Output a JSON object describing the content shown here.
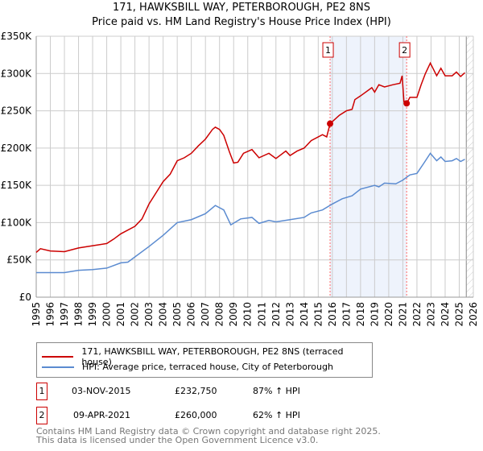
{
  "title": "171, HAWKSBILL WAY, PETERBOROUGH, PE2 8NS",
  "subtitle": "Price paid vs. HM Land Registry's House Price Index (HPI)",
  "colors": {
    "property": "#cc0000",
    "hpi": "#5b8bd0",
    "shade": "#eef3fc"
  },
  "chart_data": {
    "type": "line",
    "ylim": [
      0,
      350000
    ],
    "xlim": [
      1995,
      2026
    ],
    "yticks": [
      {
        "v": 0,
        "label": "£0"
      },
      {
        "v": 50000,
        "label": "£50K"
      },
      {
        "v": 100000,
        "label": "£100K"
      },
      {
        "v": 150000,
        "label": "£150K"
      },
      {
        "v": 200000,
        "label": "£200K"
      },
      {
        "v": 250000,
        "label": "£250K"
      },
      {
        "v": 300000,
        "label": "£300K"
      },
      {
        "v": 350000,
        "label": "£350K"
      }
    ],
    "xticks": [
      "1995",
      "1996",
      "1997",
      "1998",
      "1999",
      "2000",
      "2001",
      "2002",
      "2003",
      "2004",
      "2005",
      "2006",
      "2007",
      "2008",
      "2009",
      "2010",
      "2011",
      "2012",
      "2013",
      "2014",
      "2015",
      "2016",
      "2017",
      "2018",
      "2019",
      "2020",
      "2021",
      "2022",
      "2023",
      "2024",
      "2025",
      "2026"
    ],
    "forecast_from": 2025.5,
    "series": [
      {
        "name": "171, HAWKSBILL WAY, PETERBOROUGH, PE2 8NS (terraced house)",
        "points": [
          [
            1995,
            60
          ],
          [
            1995.3,
            65
          ],
          [
            1996,
            62
          ],
          [
            1997,
            61
          ],
          [
            1998,
            66
          ],
          [
            1999,
            69
          ],
          [
            2000,
            72
          ],
          [
            2000.5,
            78
          ],
          [
            2001,
            85
          ],
          [
            2002,
            95
          ],
          [
            2002.5,
            105
          ],
          [
            2003,
            125
          ],
          [
            2003.5,
            140
          ],
          [
            2004,
            155
          ],
          [
            2004.5,
            165
          ],
          [
            2005,
            183
          ],
          [
            2005.5,
            187
          ],
          [
            2006,
            193
          ],
          [
            2006.5,
            203
          ],
          [
            2007,
            212
          ],
          [
            2007.5,
            225
          ],
          [
            2007.7,
            228
          ],
          [
            2008,
            225
          ],
          [
            2008.3,
            217
          ],
          [
            2008.7,
            195
          ],
          [
            2009,
            180
          ],
          [
            2009.3,
            181
          ],
          [
            2009.7,
            193
          ],
          [
            2010.3,
            198
          ],
          [
            2010.8,
            187
          ],
          [
            2011.5,
            193
          ],
          [
            2012,
            186
          ],
          [
            2012.7,
            196
          ],
          [
            2013,
            190
          ],
          [
            2013.5,
            196
          ],
          [
            2014,
            200
          ],
          [
            2014.5,
            210
          ],
          [
            2015.3,
            218
          ],
          [
            2015.6,
            215
          ],
          [
            2015.84,
            232.75
          ],
          [
            2016.5,
            244
          ],
          [
            2017,
            250
          ],
          [
            2017.4,
            252
          ],
          [
            2017.6,
            265
          ],
          [
            2018,
            270
          ],
          [
            2018.8,
            281
          ],
          [
            2019,
            275
          ],
          [
            2019.3,
            285
          ],
          [
            2019.7,
            282
          ],
          [
            2020.3,
            285
          ],
          [
            2020.8,
            287
          ],
          [
            2020.95,
            297
          ],
          [
            2021.08,
            262
          ],
          [
            2021.27,
            260
          ],
          [
            2021.5,
            268
          ],
          [
            2022,
            268
          ],
          [
            2022.3,
            285
          ],
          [
            2022.6,
            300
          ],
          [
            2022.95,
            314
          ],
          [
            2023.4,
            297
          ],
          [
            2023.7,
            307
          ],
          [
            2024,
            297
          ],
          [
            2024.5,
            297
          ],
          [
            2024.8,
            302
          ],
          [
            2025.1,
            296
          ],
          [
            2025.4,
            301
          ]
        ]
      },
      {
        "name": "HPI: Average price, terraced house, City of Peterborough",
        "points": [
          [
            1995,
            33
          ],
          [
            1997,
            33
          ],
          [
            1998,
            36
          ],
          [
            1999,
            37
          ],
          [
            2000,
            39
          ],
          [
            2001,
            46
          ],
          [
            2001.5,
            47
          ],
          [
            2002,
            54
          ],
          [
            2003,
            68
          ],
          [
            2004,
            83
          ],
          [
            2005,
            100
          ],
          [
            2006,
            104
          ],
          [
            2007,
            112
          ],
          [
            2007.7,
            123
          ],
          [
            2008.3,
            117
          ],
          [
            2008.8,
            97
          ],
          [
            2009.5,
            105
          ],
          [
            2010.3,
            107
          ],
          [
            2010.8,
            99
          ],
          [
            2011.5,
            103
          ],
          [
            2012,
            101
          ],
          [
            2013,
            104
          ],
          [
            2014,
            107
          ],
          [
            2014.5,
            113
          ],
          [
            2015.3,
            117
          ],
          [
            2016,
            125
          ],
          [
            2016.7,
            132
          ],
          [
            2017.4,
            136
          ],
          [
            2018,
            145
          ],
          [
            2019,
            150
          ],
          [
            2019.3,
            148
          ],
          [
            2019.7,
            153
          ],
          [
            2020.5,
            152
          ],
          [
            2021,
            157
          ],
          [
            2021.5,
            164
          ],
          [
            2022,
            166
          ],
          [
            2022.5,
            180
          ],
          [
            2022.95,
            193
          ],
          [
            2023.4,
            183
          ],
          [
            2023.7,
            188
          ],
          [
            2024,
            182
          ],
          [
            2024.5,
            183
          ],
          [
            2024.8,
            186
          ],
          [
            2025.1,
            182
          ],
          [
            2025.4,
            185
          ]
        ]
      }
    ],
    "y_units": "thousands GBP",
    "sales": [
      {
        "id": "1",
        "x": 2015.84,
        "y": 232.75
      },
      {
        "id": "2",
        "x": 2021.27,
        "y": 260
      }
    ]
  },
  "legend": {
    "property": "171, HAWKSBILL WAY, PETERBOROUGH, PE2 8NS (terraced house)",
    "hpi": "HPI: Average price, terraced house, City of Peterborough"
  },
  "transactions": [
    {
      "id": "1",
      "date": "03-NOV-2015",
      "price": "£232,750",
      "hpi": "87% ↑ HPI"
    },
    {
      "id": "2",
      "date": "09-APR-2021",
      "price": "£260,000",
      "hpi": "62% ↑ HPI"
    }
  ],
  "footer": [
    "Contains HM Land Registry data © Crown copyright and database right 2025.",
    "This data is licensed under the Open Government Licence v3.0."
  ]
}
